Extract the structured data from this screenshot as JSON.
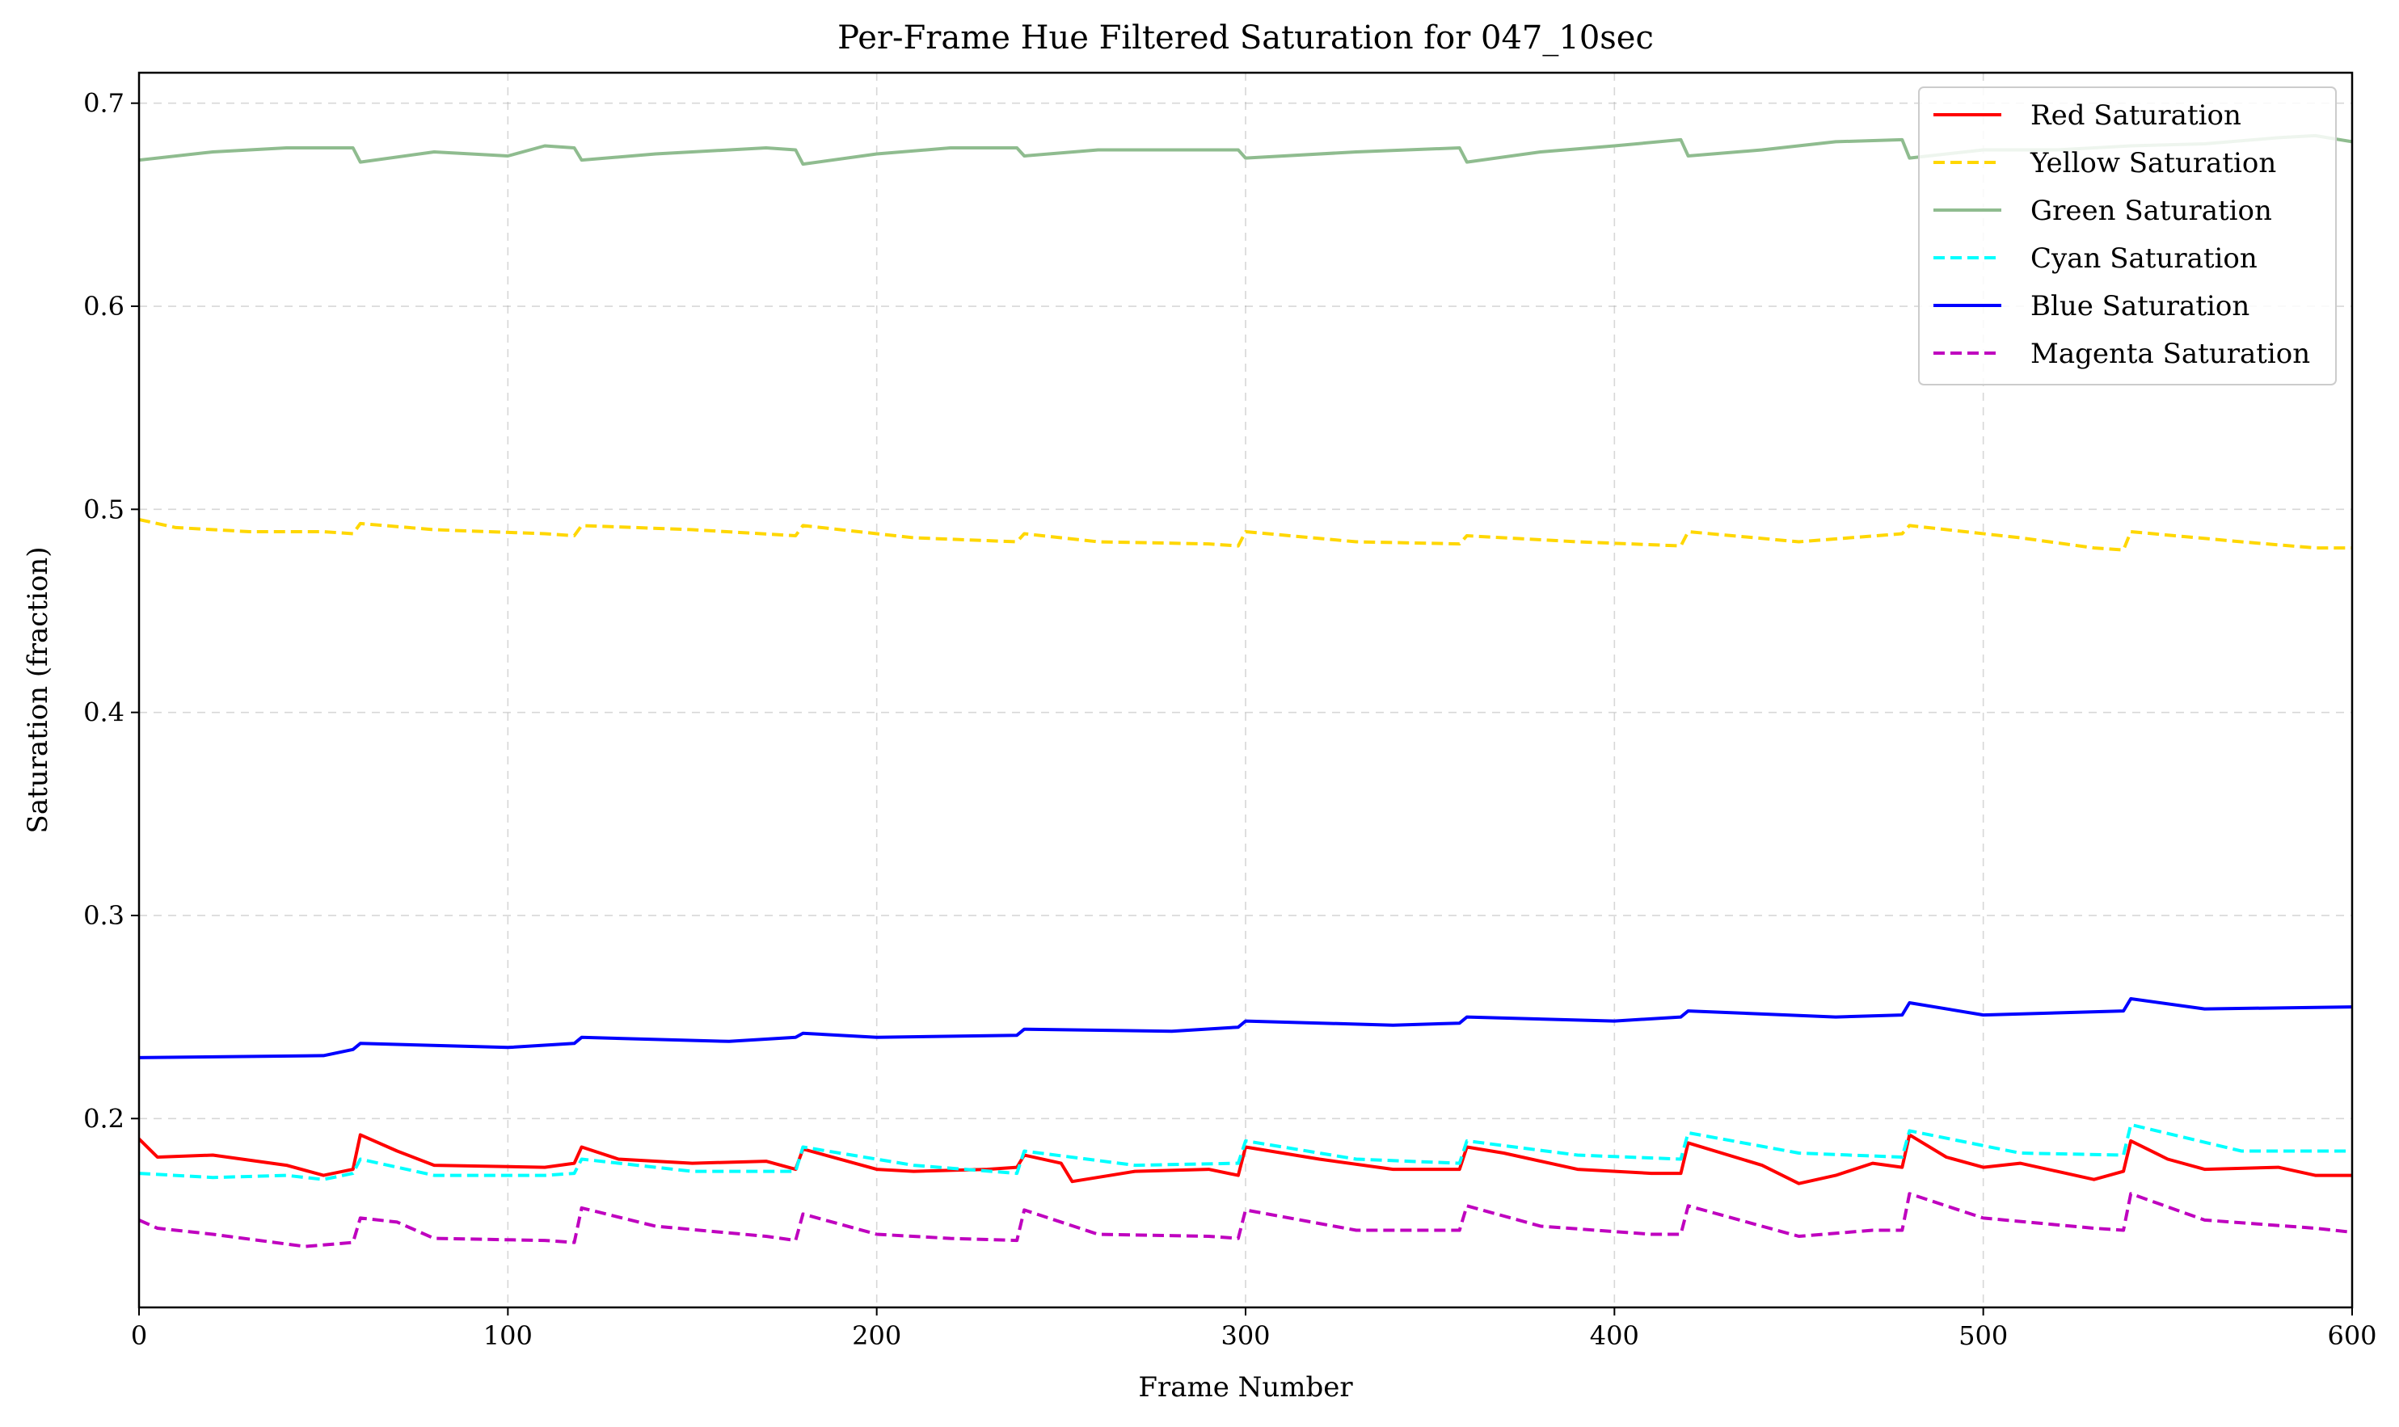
{
  "chart_data": {
    "type": "line",
    "title": "Per-Frame Hue Filtered Saturation for 047_10sec",
    "xlabel": "Frame Number",
    "ylabel": "Saturation (fraction)",
    "xlim": [
      0,
      600
    ],
    "ylim": [
      0.107,
      0.715
    ],
    "xticks": [
      0,
      100,
      200,
      300,
      400,
      500,
      600
    ],
    "xtick_labels": [
      "0",
      "100",
      "200",
      "300",
      "400",
      "500",
      "600"
    ],
    "yticks": [
      0.2,
      0.3,
      0.4,
      0.5,
      0.6,
      0.7
    ],
    "ytick_labels": [
      "0.2",
      "0.3",
      "0.4",
      "0.5",
      "0.6",
      "0.7"
    ],
    "grid": true,
    "legend_position": "top-right",
    "series": [
      {
        "name": "Red Saturation",
        "color": "#ff0000",
        "dash": "solid",
        "x": [
          0,
          5,
          20,
          40,
          50,
          58,
          60,
          70,
          80,
          110,
          118,
          120,
          130,
          150,
          170,
          178,
          180,
          200,
          210,
          230,
          238,
          240,
          250,
          253,
          270,
          290,
          298,
          300,
          320,
          340,
          358,
          360,
          370,
          390,
          410,
          418,
          420,
          440,
          450,
          460,
          470,
          478,
          480,
          490,
          500,
          510,
          520,
          530,
          538,
          540,
          550,
          560,
          580,
          590,
          600
        ],
        "y": [
          0.19,
          0.181,
          0.182,
          0.177,
          0.172,
          0.175,
          0.192,
          0.184,
          0.177,
          0.176,
          0.178,
          0.186,
          0.18,
          0.178,
          0.179,
          0.175,
          0.185,
          0.175,
          0.174,
          0.175,
          0.176,
          0.182,
          0.178,
          0.169,
          0.174,
          0.175,
          0.172,
          0.186,
          0.18,
          0.175,
          0.175,
          0.186,
          0.183,
          0.175,
          0.173,
          0.173,
          0.188,
          0.177,
          0.168,
          0.172,
          0.178,
          0.176,
          0.192,
          0.181,
          0.176,
          0.178,
          0.174,
          0.17,
          0.174,
          0.189,
          0.18,
          0.175,
          0.176,
          0.172,
          0.172
        ]
      },
      {
        "name": "Yellow Saturation",
        "color": "#ffd700",
        "dash": "dashed",
        "x": [
          0,
          10,
          30,
          50,
          58,
          60,
          80,
          110,
          118,
          120,
          150,
          178,
          180,
          210,
          238,
          240,
          260,
          290,
          298,
          300,
          330,
          358,
          360,
          390,
          418,
          420,
          450,
          478,
          480,
          510,
          530,
          538,
          540,
          570,
          590,
          600
        ],
        "y": [
          0.495,
          0.491,
          0.489,
          0.489,
          0.488,
          0.493,
          0.49,
          0.488,
          0.487,
          0.492,
          0.49,
          0.487,
          0.492,
          0.486,
          0.484,
          0.488,
          0.484,
          0.483,
          0.482,
          0.489,
          0.484,
          0.483,
          0.487,
          0.484,
          0.482,
          0.489,
          0.484,
          0.488,
          0.492,
          0.486,
          0.481,
          0.48,
          0.489,
          0.484,
          0.481,
          0.481
        ]
      },
      {
        "name": "Green Saturation",
        "color": "#8fbc8f",
        "dash": "solid",
        "x": [
          0,
          20,
          40,
          58,
          60,
          80,
          100,
          110,
          118,
          120,
          140,
          170,
          178,
          180,
          200,
          220,
          238,
          240,
          260,
          290,
          298,
          300,
          330,
          358,
          360,
          380,
          400,
          418,
          420,
          440,
          460,
          478,
          480,
          500,
          520,
          540,
          560,
          580,
          590,
          600
        ],
        "y": [
          0.672,
          0.676,
          0.678,
          0.678,
          0.671,
          0.676,
          0.674,
          0.679,
          0.678,
          0.672,
          0.675,
          0.678,
          0.677,
          0.67,
          0.675,
          0.678,
          0.678,
          0.674,
          0.677,
          0.677,
          0.677,
          0.673,
          0.676,
          0.678,
          0.671,
          0.676,
          0.679,
          0.682,
          0.674,
          0.677,
          0.681,
          0.682,
          0.673,
          0.677,
          0.677,
          0.679,
          0.68,
          0.683,
          0.684,
          0.681
        ]
      },
      {
        "name": "Cyan Saturation",
        "color": "#00ffff",
        "dash": "dashed",
        "x": [
          0,
          20,
          40,
          50,
          58,
          60,
          80,
          110,
          118,
          120,
          150,
          178,
          180,
          210,
          238,
          240,
          270,
          298,
          300,
          330,
          358,
          360,
          390,
          418,
          420,
          450,
          478,
          480,
          510,
          538,
          540,
          570,
          600
        ],
        "y": [
          0.173,
          0.171,
          0.172,
          0.17,
          0.173,
          0.18,
          0.172,
          0.172,
          0.173,
          0.18,
          0.174,
          0.174,
          0.186,
          0.177,
          0.173,
          0.184,
          0.177,
          0.178,
          0.189,
          0.18,
          0.178,
          0.189,
          0.182,
          0.18,
          0.193,
          0.183,
          0.181,
          0.194,
          0.183,
          0.182,
          0.197,
          0.184,
          0.184
        ]
      },
      {
        "name": "Blue Saturation",
        "color": "#0000ff",
        "dash": "solid",
        "x": [
          0,
          50,
          58,
          60,
          100,
          118,
          120,
          160,
          178,
          180,
          200,
          238,
          240,
          280,
          298,
          300,
          340,
          358,
          360,
          400,
          418,
          420,
          460,
          478,
          480,
          500,
          538,
          540,
          560,
          600
        ],
        "y": [
          0.23,
          0.231,
          0.234,
          0.237,
          0.235,
          0.237,
          0.24,
          0.238,
          0.24,
          0.242,
          0.24,
          0.241,
          0.244,
          0.243,
          0.245,
          0.248,
          0.246,
          0.247,
          0.25,
          0.248,
          0.25,
          0.253,
          0.25,
          0.251,
          0.257,
          0.251,
          0.253,
          0.259,
          0.254,
          0.255
        ]
      },
      {
        "name": "Magenta Saturation",
        "color": "#bf00bf",
        "dash": "dashed",
        "x": [
          0,
          5,
          20,
          45,
          58,
          60,
          70,
          80,
          110,
          118,
          120,
          140,
          170,
          178,
          180,
          200,
          220,
          238,
          240,
          260,
          290,
          298,
          300,
          330,
          358,
          360,
          380,
          410,
          418,
          420,
          440,
          450,
          470,
          478,
          480,
          500,
          530,
          538,
          540,
          560,
          590,
          600
        ],
        "y": [
          0.15,
          0.146,
          0.143,
          0.137,
          0.139,
          0.151,
          0.149,
          0.141,
          0.14,
          0.139,
          0.156,
          0.147,
          0.142,
          0.14,
          0.153,
          0.143,
          0.141,
          0.14,
          0.155,
          0.143,
          0.142,
          0.141,
          0.155,
          0.145,
          0.145,
          0.157,
          0.147,
          0.143,
          0.143,
          0.157,
          0.147,
          0.142,
          0.145,
          0.145,
          0.163,
          0.151,
          0.146,
          0.145,
          0.163,
          0.15,
          0.146,
          0.144
        ]
      }
    ]
  }
}
